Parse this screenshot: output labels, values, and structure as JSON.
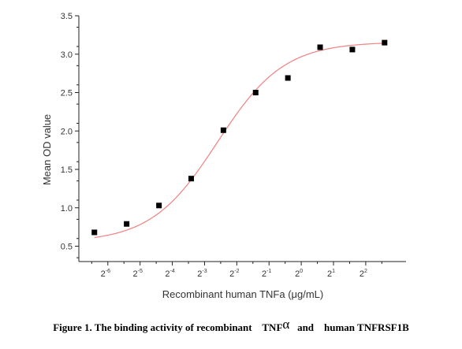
{
  "chart_data": {
    "type": "scatter",
    "xlabel": "Recombinant human TNFa (μg/mL)",
    "ylabel": "Mean OD value",
    "x_scale": "log2",
    "xticks": [
      {
        "base": "2",
        "exp": "-6",
        "value": 0.015625
      },
      {
        "base": "2",
        "exp": "-5",
        "value": 0.03125
      },
      {
        "base": "2",
        "exp": "-4",
        "value": 0.0625
      },
      {
        "base": "2",
        "exp": "-3",
        "value": 0.125
      },
      {
        "base": "2",
        "exp": "-2",
        "value": 0.25
      },
      {
        "base": "2",
        "exp": "-1",
        "value": 0.5
      },
      {
        "base": "2",
        "exp": "0",
        "value": 1
      },
      {
        "base": "2",
        "exp": "1",
        "value": 2
      },
      {
        "base": "2",
        "exp": "2",
        "value": 4
      }
    ],
    "yticks": [
      "0.5",
      "1.0",
      "1.5",
      "2.0",
      "2.5",
      "3.0",
      "3.5"
    ],
    "ylim": [
      0.5,
      3.5
    ],
    "grid": false,
    "series": [
      {
        "marker": "square",
        "color": "#000000",
        "points": [
          {
            "x": 0.0117,
            "y": 0.68
          },
          {
            "x": 0.0234,
            "y": 0.79
          },
          {
            "x": 0.0469,
            "y": 1.03
          },
          {
            "x": 0.0938,
            "y": 1.38
          },
          {
            "x": 0.1875,
            "y": 2.01
          },
          {
            "x": 0.375,
            "y": 2.5
          },
          {
            "x": 0.75,
            "y": 2.69
          },
          {
            "x": 1.5,
            "y": 3.09
          },
          {
            "x": 3.0,
            "y": 3.06
          },
          {
            "x": 6.0,
            "y": 3.15
          }
        ]
      },
      {
        "type": "fit-curve",
        "color": "#f08080",
        "fit": {
          "bottom": 0.55,
          "top": 3.16,
          "ec50": 0.165,
          "hill": 1.4
        }
      }
    ]
  },
  "caption": {
    "part1": "Figure 1. The binding activity of recombinant    TNF",
    "alpha": "α",
    "part2": "   and    human TNFRSF1B"
  }
}
